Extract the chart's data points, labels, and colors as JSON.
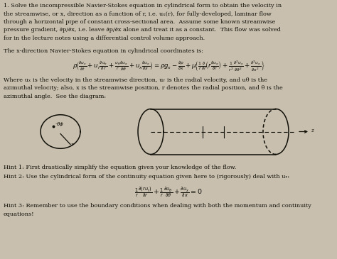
{
  "bg_color": "#c8bfaf",
  "text_color": "#111008",
  "para1_lines": [
    "1. Solve the incompressible Navier-Stokes equation in cylindrical form to obtain the velocity in",
    "the streamwise, or x, direction as a function of r, i.e. uₓ(r), for fully-developed, laminar flow",
    "through a horizontal pipe of constant cross-sectional area.  Assume some known streamwise",
    "pressure gradient, ∂p/∂x, i.e. leave ∂p/∂x alone and treat it as a constant.  This flow was solved",
    "for in the lecture notes using a differential control volume approach."
  ],
  "ns_label": "The x-direction Navier-Stokes equation in cylindrical coordinates is:",
  "where_lines": [
    "Where uₓ is the velocity in the streamwise direction, uᵣ is the radial velocity, and uθ is the",
    "azimuthal velocity; also, x is the streamwise position, r denotes the radial position, and θ is the",
    "azimuthal angle.  See the diagram:"
  ],
  "hint1": "Hint 1: First drastically simplify the equation given your knowledge of the flow.",
  "hint2": "Hint 2: Use the cylindrical form of the continuity equation given here to (rigorously) deal with uᵣ:",
  "hint3": "Hint 3: Remember to use the boundary conditions when dealing with both the momentum and continuity",
  "hint3b": "equations!"
}
